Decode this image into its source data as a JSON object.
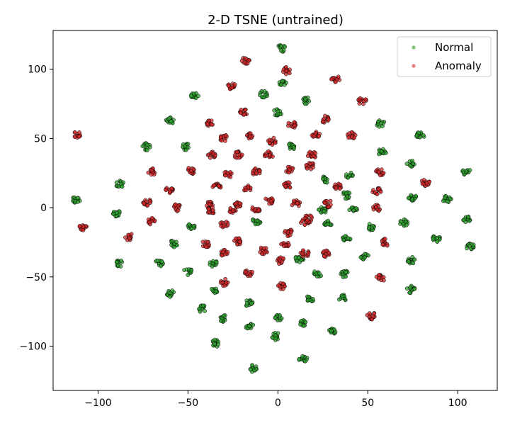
{
  "chart_data": {
    "type": "scatter",
    "title": "2-D TSNE (untrained)",
    "xlabel": "",
    "ylabel": "",
    "xlim": [
      -125,
      122
    ],
    "ylim": [
      -132,
      128
    ],
    "xticks": [
      -100,
      -50,
      0,
      50,
      100
    ],
    "yticks": [
      -100,
      -50,
      0,
      50,
      100
    ],
    "grid": false,
    "legend_position": "top-right",
    "series": [
      {
        "name": "Normal",
        "color": "#2ca02c",
        "edge_color": "#000000",
        "clusters": [
          {
            "x": 2,
            "y": 115
          },
          {
            "x": 3,
            "y": 90
          },
          {
            "x": -46,
            "y": 81
          },
          {
            "x": -8,
            "y": 82
          },
          {
            "x": 16,
            "y": 77
          },
          {
            "x": -60,
            "y": 63
          },
          {
            "x": 0,
            "y": 69
          },
          {
            "x": 57,
            "y": 61
          },
          {
            "x": -73,
            "y": 44
          },
          {
            "x": -51,
            "y": 44
          },
          {
            "x": 79,
            "y": 52
          },
          {
            "x": 7,
            "y": 44
          },
          {
            "x": 58,
            "y": 40
          },
          {
            "x": 74,
            "y": 32
          },
          {
            "x": 105,
            "y": 26
          },
          {
            "x": -88,
            "y": 17
          },
          {
            "x": 26,
            "y": 20
          },
          {
            "x": 40,
            "y": 23
          },
          {
            "x": -112,
            "y": 6
          },
          {
            "x": 38,
            "y": 9
          },
          {
            "x": 75,
            "y": 7
          },
          {
            "x": 94,
            "y": 6
          },
          {
            "x": -90,
            "y": -4
          },
          {
            "x": 25,
            "y": -2
          },
          {
            "x": 42,
            "y": -2
          },
          {
            "x": -48,
            "y": -13
          },
          {
            "x": -12,
            "y": -10
          },
          {
            "x": 28,
            "y": -12
          },
          {
            "x": 105,
            "y": -8
          },
          {
            "x": 52,
            "y": -14
          },
          {
            "x": 70,
            "y": -11
          },
          {
            "x": -58,
            "y": -26
          },
          {
            "x": 38,
            "y": -23
          },
          {
            "x": 88,
            "y": -22
          },
          {
            "x": 107,
            "y": -28
          },
          {
            "x": -88,
            "y": -40
          },
          {
            "x": -66,
            "y": -40
          },
          {
            "x": 12,
            "y": -37
          },
          {
            "x": 48,
            "y": -35
          },
          {
            "x": 74,
            "y": -38
          },
          {
            "x": -50,
            "y": -46
          },
          {
            "x": -36,
            "y": -40
          },
          {
            "x": 22,
            "y": -48
          },
          {
            "x": 37,
            "y": -48
          },
          {
            "x": -36,
            "y": -60
          },
          {
            "x": -60,
            "y": -62
          },
          {
            "x": 74,
            "y": -59
          },
          {
            "x": 18,
            "y": -66
          },
          {
            "x": 36,
            "y": -65
          },
          {
            "x": -42,
            "y": -73
          },
          {
            "x": -16,
            "y": -69
          },
          {
            "x": 0,
            "y": -80
          },
          {
            "x": -30,
            "y": -80
          },
          {
            "x": 14,
            "y": -83
          },
          {
            "x": -16,
            "y": -85
          },
          {
            "x": 30,
            "y": -89
          },
          {
            "x": -1,
            "y": -93
          },
          {
            "x": -35,
            "y": -98
          },
          {
            "x": 14,
            "y": -109
          },
          {
            "x": -14,
            "y": -116
          }
        ]
      },
      {
        "name": "Anomaly",
        "color": "#d62728",
        "edge_color": "#000000",
        "clusters": [
          {
            "x": -18,
            "y": 106
          },
          {
            "x": 5,
            "y": 99
          },
          {
            "x": 32,
            "y": 93
          },
          {
            "x": -26,
            "y": 88
          },
          {
            "x": 47,
            "y": 77
          },
          {
            "x": -19,
            "y": 69
          },
          {
            "x": 26,
            "y": 64
          },
          {
            "x": -38,
            "y": 61
          },
          {
            "x": 8,
            "y": 60
          },
          {
            "x": -112,
            "y": 53
          },
          {
            "x": -30,
            "y": 50
          },
          {
            "x": -16,
            "y": 52
          },
          {
            "x": 21,
            "y": 53
          },
          {
            "x": 41,
            "y": 52
          },
          {
            "x": -3,
            "y": 48
          },
          {
            "x": -22,
            "y": 38
          },
          {
            "x": -5,
            "y": 38
          },
          {
            "x": 19,
            "y": 38
          },
          {
            "x": -37,
            "y": 38
          },
          {
            "x": -48,
            "y": 27
          },
          {
            "x": -70,
            "y": 26
          },
          {
            "x": -28,
            "y": 24
          },
          {
            "x": -12,
            "y": 26
          },
          {
            "x": 6,
            "y": 28
          },
          {
            "x": 18,
            "y": 30
          },
          {
            "x": 57,
            "y": 26
          },
          {
            "x": -60,
            "y": 13
          },
          {
            "x": -34,
            "y": 15
          },
          {
            "x": -17,
            "y": 14
          },
          {
            "x": 5,
            "y": 16
          },
          {
            "x": 33,
            "y": 15
          },
          {
            "x": 55,
            "y": 12
          },
          {
            "x": 82,
            "y": 18
          },
          {
            "x": -73,
            "y": 4
          },
          {
            "x": -38,
            "y": 2
          },
          {
            "x": -22,
            "y": 3
          },
          {
            "x": -5,
            "y": 5
          },
          {
            "x": 10,
            "y": 3
          },
          {
            "x": 28,
            "y": 3
          },
          {
            "x": -56,
            "y": 0
          },
          {
            "x": -37,
            "y": -2
          },
          {
            "x": -25,
            "y": -2
          },
          {
            "x": -12,
            "y": -1
          },
          {
            "x": 17,
            "y": -8
          },
          {
            "x": 55,
            "y": 0
          },
          {
            "x": -108,
            "y": -14
          },
          {
            "x": -70,
            "y": -10
          },
          {
            "x": -30,
            "y": -12
          },
          {
            "x": 15,
            "y": -10
          },
          {
            "x": -83,
            "y": -21
          },
          {
            "x": -22,
            "y": -24
          },
          {
            "x": 6,
            "y": -18
          },
          {
            "x": -40,
            "y": -26
          },
          {
            "x": 4,
            "y": -26
          },
          {
            "x": 60,
            "y": -25
          },
          {
            "x": -30,
            "y": -33
          },
          {
            "x": -8,
            "y": -31
          },
          {
            "x": 15,
            "y": -33
          },
          {
            "x": 27,
            "y": -33
          },
          {
            "x": 1,
            "y": -38
          },
          {
            "x": -16,
            "y": -47
          },
          {
            "x": 57,
            "y": -51
          },
          {
            "x": -30,
            "y": -54
          },
          {
            "x": 2,
            "y": -57
          },
          {
            "x": 52,
            "y": -78
          }
        ]
      }
    ]
  }
}
